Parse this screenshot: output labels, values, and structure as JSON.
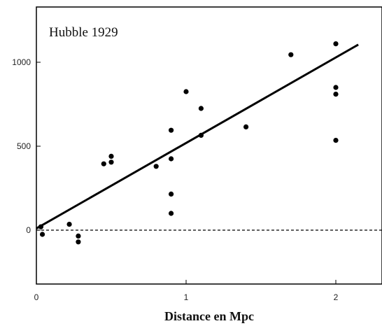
{
  "chart_data": {
    "type": "scatter",
    "title": "Hubble 1929",
    "xlabel": "Distance en Mpc",
    "ylabel": "",
    "xlim": [
      0,
      2.3
    ],
    "ylim": [
      -330,
      1300
    ],
    "x_ticks": [
      0,
      1,
      2
    ],
    "y_ticks": [
      0,
      500,
      1000
    ],
    "grid": false,
    "zero_line": {
      "y": 0,
      "style": "dashed"
    },
    "fit_line": {
      "x": [
        0,
        2.15
      ],
      "y": [
        10,
        1105
      ]
    },
    "points": [
      {
        "x": 0.03,
        "y": 20
      },
      {
        "x": 0.04,
        "y": -25
      },
      {
        "x": 0.22,
        "y": 35
      },
      {
        "x": 0.28,
        "y": -35
      },
      {
        "x": 0.28,
        "y": -70
      },
      {
        "x": 0.45,
        "y": 395
      },
      {
        "x": 0.5,
        "y": 405
      },
      {
        "x": 0.5,
        "y": 440
      },
      {
        "x": 0.8,
        "y": 380
      },
      {
        "x": 0.9,
        "y": 595
      },
      {
        "x": 0.9,
        "y": 425
      },
      {
        "x": 0.9,
        "y": 215
      },
      {
        "x": 0.9,
        "y": 100
      },
      {
        "x": 1.0,
        "y": 825
      },
      {
        "x": 1.1,
        "y": 725
      },
      {
        "x": 1.1,
        "y": 565
      },
      {
        "x": 1.4,
        "y": 615
      },
      {
        "x": 1.7,
        "y": 1045
      },
      {
        "x": 2.0,
        "y": 1110
      },
      {
        "x": 2.0,
        "y": 850
      },
      {
        "x": 2.0,
        "y": 810
      },
      {
        "x": 2.0,
        "y": 535
      }
    ]
  }
}
